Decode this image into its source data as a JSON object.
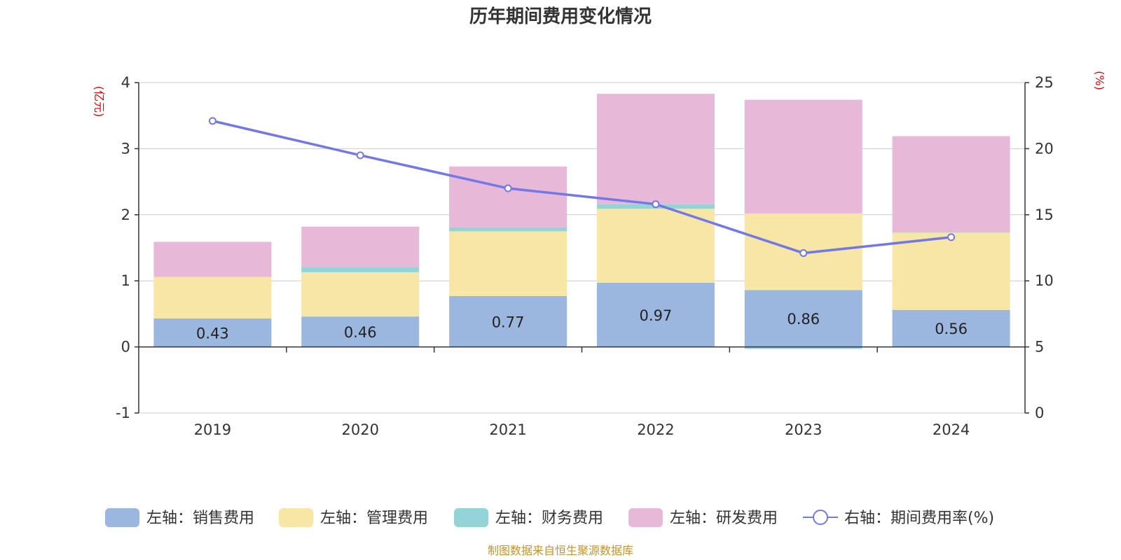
{
  "chart_data": {
    "type": "bar",
    "stacked": true,
    "title": "历年期间费用变化情况",
    "categories": [
      "2019",
      "2020",
      "2021",
      "2022",
      "2023",
      "2024"
    ],
    "left_axis": {
      "unit": "(亿元)",
      "ylim": [
        -1,
        4
      ],
      "ticks": [
        "-1",
        "0",
        "1",
        "2",
        "3",
        "4"
      ]
    },
    "right_axis": {
      "unit": "(%)",
      "ylim": [
        0,
        25
      ],
      "ticks": [
        "0",
        "5",
        "10",
        "15",
        "20",
        "25"
      ]
    },
    "series": [
      {
        "name": "左轴：销售费用",
        "axis": "left",
        "color": "#9bb7e0",
        "values": [
          0.43,
          0.46,
          0.77,
          0.97,
          0.86,
          0.56
        ],
        "labels": [
          "0.43",
          "0.46",
          "0.77",
          "0.97",
          "0.86",
          "0.56"
        ]
      },
      {
        "name": "左轴：管理费用",
        "axis": "left",
        "color": "#f7e6a6",
        "values": [
          0.63,
          0.67,
          0.98,
          1.12,
          1.16,
          1.17
        ]
      },
      {
        "name": "左轴：财务费用",
        "axis": "left",
        "color": "#94d3d6",
        "values": [
          0.0,
          0.08,
          0.06,
          0.07,
          -0.03,
          0.01
        ]
      },
      {
        "name": "左轴：研发费用",
        "axis": "left",
        "color": "#e8b8d8",
        "values": [
          0.53,
          0.61,
          0.92,
          1.67,
          1.72,
          1.45
        ]
      },
      {
        "name": "右轴：期间费用率(%)",
        "axis": "right",
        "type": "line",
        "color": "#7378e8",
        "values": [
          22.1,
          19.5,
          17.0,
          15.8,
          12.1,
          13.3
        ]
      }
    ]
  },
  "source": "制图数据来自恒生聚源数据库"
}
